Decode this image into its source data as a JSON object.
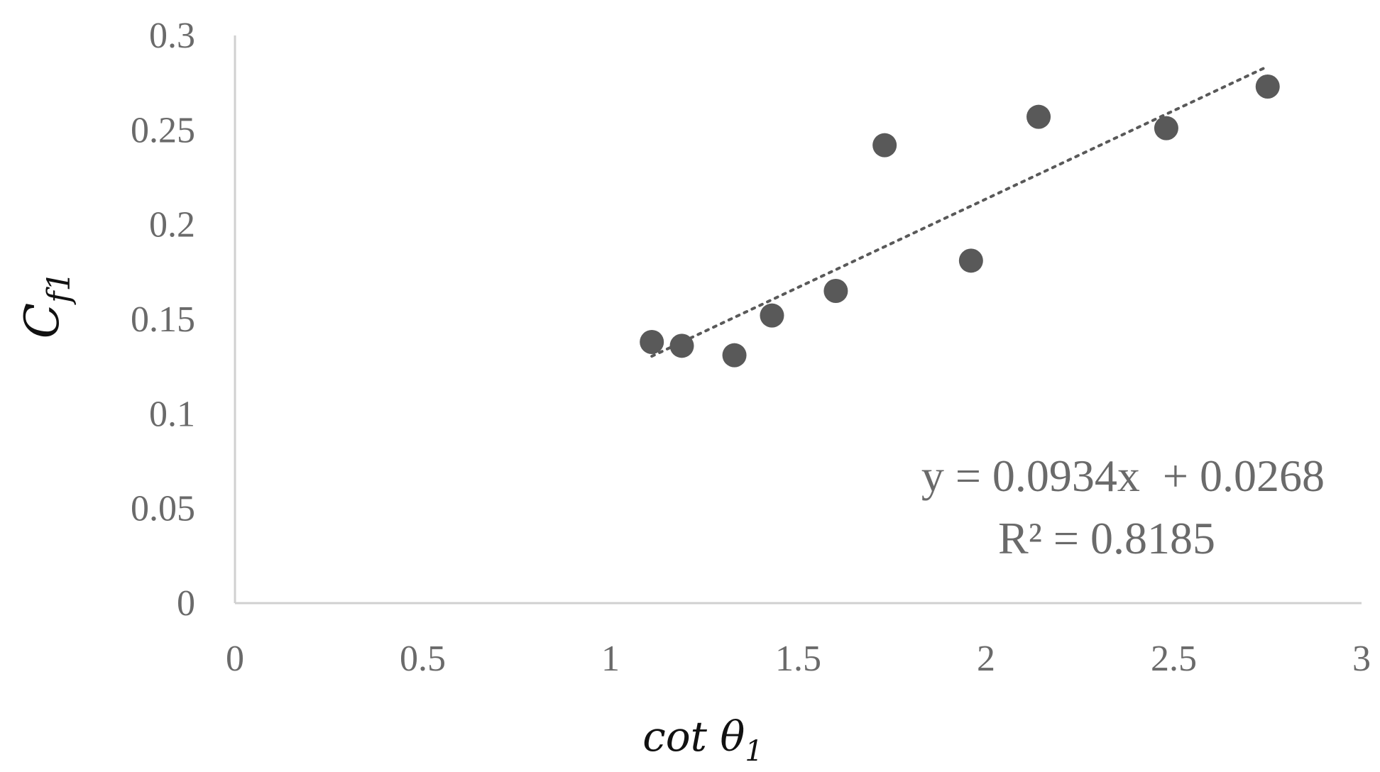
{
  "chart_data": {
    "type": "scatter",
    "title": "",
    "xlabel": {
      "base": "cot θ",
      "sub": "1"
    },
    "ylabel": {
      "base": "C",
      "sub": "f1"
    },
    "xlim": [
      0,
      3
    ],
    "ylim": [
      0,
      0.3
    ],
    "x_ticks": [
      "0",
      "0.5",
      "1",
      "1.5",
      "2",
      "2.5",
      "3"
    ],
    "y_ticks": [
      "0",
      "0.05",
      "0.1",
      "0.15",
      "0.2",
      "0.25",
      "0.3"
    ],
    "grid": false,
    "points": [
      {
        "x": 1.11,
        "y": 0.138
      },
      {
        "x": 1.19,
        "y": 0.136
      },
      {
        "x": 1.33,
        "y": 0.131
      },
      {
        "x": 1.43,
        "y": 0.152
      },
      {
        "x": 1.6,
        "y": 0.165
      },
      {
        "x": 1.73,
        "y": 0.242
      },
      {
        "x": 1.96,
        "y": 0.181
      },
      {
        "x": 2.14,
        "y": 0.257
      },
      {
        "x": 2.48,
        "y": 0.251
      },
      {
        "x": 2.75,
        "y": 0.273
      }
    ],
    "trendline": {
      "type": "linear",
      "slope": 0.0934,
      "intercept": 0.0268,
      "x_range": [
        1.11,
        2.75
      ],
      "equation": "y = 0.0934x  + 0.0268",
      "r_squared": "R² = 0.8185"
    },
    "colors": {
      "marker": "#595959",
      "trendline": "#595959",
      "axis": "#d0d0d0",
      "text": "#6a6a6a"
    }
  }
}
